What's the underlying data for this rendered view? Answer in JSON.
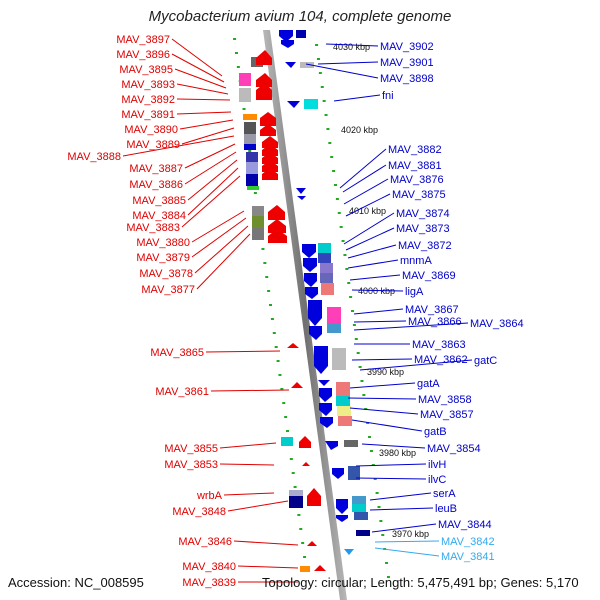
{
  "title": "Mycobacterium avium 104, complete genome",
  "footer": {
    "accession": "Accession: NC_008595",
    "topology": "Topology: circular; Length: 5,475,491 bp; Genes: 5,170"
  },
  "colors": {
    "left_labels": "#e00000",
    "right_labels": "#0000cc",
    "light_labels": "#33aaee",
    "backbone": "#888888",
    "tick": "#22aa22"
  },
  "kbp_marks": [
    "4030 kbp",
    "4020 kbp",
    "4010 kbp",
    "4000 kbp",
    "3990 kbp",
    "3980 kbp",
    "3970 kbp"
  ],
  "left_genes": [
    "MAV_3897",
    "MAV_3896",
    "MAV_3895",
    "MAV_3893",
    "MAV_3892",
    "MAV_3891",
    "MAV_3890",
    "MAV_3889",
    "MAV_3888",
    "MAV_3887",
    "MAV_3886",
    "MAV_3885",
    "MAV_3884",
    "MAV_3883",
    "MAV_3880",
    "MAV_3879",
    "MAV_3878",
    "MAV_3877",
    "MAV_3865",
    "MAV_3861",
    "MAV_3855",
    "MAV_3853",
    "wrbA",
    "MAV_3848",
    "MAV_3846",
    "MAV_3840",
    "MAV_3839"
  ],
  "right_genes": [
    "MAV_3902",
    "MAV_3901",
    "MAV_3898",
    "fni",
    "MAV_3882",
    "MAV_3881",
    "MAV_3876",
    "MAV_3875",
    "MAV_3874",
    "MAV_3873",
    "MAV_3872",
    "mnmA",
    "MAV_3869",
    "ligA",
    "MAV_3867",
    "MAV_3866",
    "MAV_3864",
    "MAV_3863",
    "MAV_3862",
    "gatC",
    "gatA",
    "MAV_3858",
    "MAV_3857",
    "gatB",
    "MAV_3854",
    "ilvH",
    "ilvC",
    "serA",
    "leuB",
    "MAV_3844",
    "MAV_3842",
    "MAV_3841"
  ]
}
